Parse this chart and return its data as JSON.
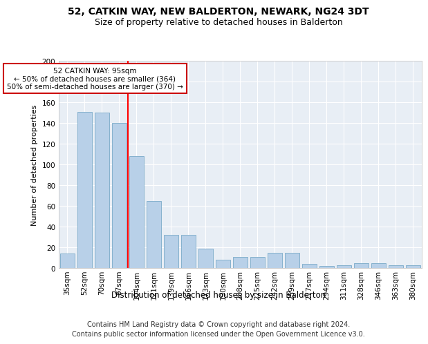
{
  "title1": "52, CATKIN WAY, NEW BALDERTON, NEWARK, NG24 3DT",
  "title2": "Size of property relative to detached houses in Balderton",
  "xlabel": "Distribution of detached houses by size in Balderton",
  "ylabel": "Number of detached properties",
  "categories": [
    "35sqm",
    "52sqm",
    "70sqm",
    "87sqm",
    "104sqm",
    "121sqm",
    "139sqm",
    "156sqm",
    "173sqm",
    "190sqm",
    "208sqm",
    "225sqm",
    "242sqm",
    "259sqm",
    "277sqm",
    "294sqm",
    "311sqm",
    "328sqm",
    "346sqm",
    "363sqm",
    "380sqm"
  ],
  "values": [
    14,
    151,
    150,
    140,
    108,
    65,
    32,
    32,
    19,
    8,
    11,
    11,
    15,
    15,
    4,
    2,
    3,
    5,
    5,
    3,
    3
  ],
  "bar_color": "#b8d0e8",
  "bar_edge_color": "#7aaac8",
  "red_line_x": 3.5,
  "annotation_text": "52 CATKIN WAY: 95sqm\n← 50% of detached houses are smaller (364)\n50% of semi-detached houses are larger (370) →",
  "annotation_box_color": "#ffffff",
  "annotation_box_edge_color": "#cc0000",
  "ylim": [
    0,
    200
  ],
  "yticks": [
    0,
    20,
    40,
    60,
    80,
    100,
    120,
    140,
    160,
    180,
    200
  ],
  "footer1": "Contains HM Land Registry data © Crown copyright and database right 2024.",
  "footer2": "Contains public sector information licensed under the Open Government Licence v3.0.",
  "bg_color": "#ffffff",
  "plot_bg_color": "#e8eef5",
  "grid_color": "#ffffff",
  "title1_fontsize": 10,
  "title2_fontsize": 9,
  "xlabel_fontsize": 8.5,
  "ylabel_fontsize": 8,
  "tick_fontsize": 7.5,
  "footer_fontsize": 7,
  "annot_fontsize": 7.5
}
